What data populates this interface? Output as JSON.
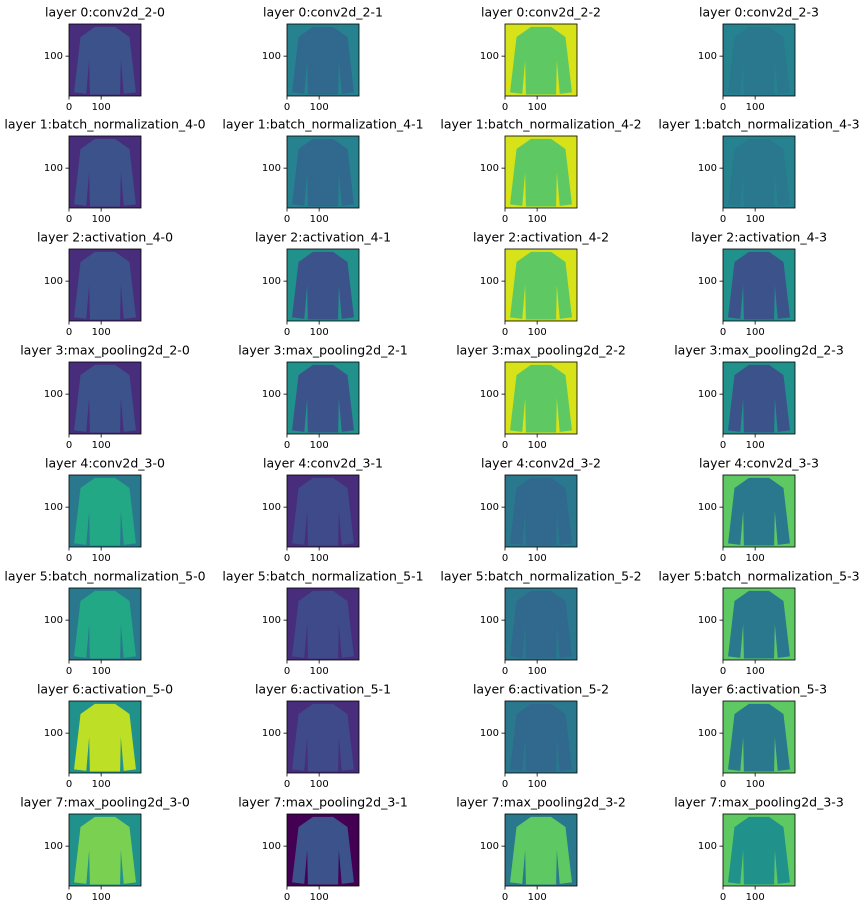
{
  "chart_data": [
    {
      "type": "image",
      "title": "layer 0:conv2d_2-0",
      "color": "#472d7b",
      "foreground": "#3b528b",
      "xlim": [
        0,
        224
      ],
      "ylim": [
        224,
        0
      ],
      "xticks": [
        0,
        100
      ],
      "yticks": [
        100
      ]
    },
    {
      "type": "image",
      "title": "layer 0:conv2d_2-1",
      "color": "#26828e",
      "foreground": "#31688e",
      "xlim": [
        0,
        224
      ],
      "ylim": [
        224,
        0
      ],
      "xticks": [
        0,
        100
      ],
      "yticks": [
        100
      ]
    },
    {
      "type": "image",
      "title": "layer 0:conv2d_2-2",
      "color": "#d8e219",
      "foreground": "#5ec962",
      "xlim": [
        0,
        224
      ],
      "ylim": [
        224,
        0
      ],
      "xticks": [
        0,
        100
      ],
      "yticks": [
        100
      ]
    },
    {
      "type": "image",
      "title": "layer 0:conv2d_2-3",
      "color": "#26828e",
      "foreground": "#2a788e",
      "xlim": [
        0,
        224
      ],
      "ylim": [
        224,
        0
      ],
      "xticks": [
        0,
        100
      ],
      "yticks": [
        100
      ]
    },
    {
      "type": "image",
      "title": "layer 1:batch_normalization_4-0",
      "color": "#472d7b",
      "foreground": "#3b528b",
      "xlim": [
        0,
        224
      ],
      "ylim": [
        224,
        0
      ],
      "xticks": [
        0,
        100
      ],
      "yticks": [
        100
      ]
    },
    {
      "type": "image",
      "title": "layer 1:batch_normalization_4-1",
      "color": "#26828e",
      "foreground": "#31688e",
      "xlim": [
        0,
        224
      ],
      "ylim": [
        224,
        0
      ],
      "xticks": [
        0,
        100
      ],
      "yticks": [
        100
      ]
    },
    {
      "type": "image",
      "title": "layer 1:batch_normalization_4-2",
      "color": "#d8e219",
      "foreground": "#5ec962",
      "xlim": [
        0,
        224
      ],
      "ylim": [
        224,
        0
      ],
      "xticks": [
        0,
        100
      ],
      "yticks": [
        100
      ]
    },
    {
      "type": "image",
      "title": "layer 1:batch_normalization_4-3",
      "color": "#26828e",
      "foreground": "#2a788e",
      "xlim": [
        0,
        224
      ],
      "ylim": [
        224,
        0
      ],
      "xticks": [
        0,
        100
      ],
      "yticks": [
        100
      ]
    },
    {
      "type": "image",
      "title": "layer 2:activation_4-0",
      "color": "#472d7b",
      "foreground": "#3b528b",
      "xlim": [
        0,
        224
      ],
      "ylim": [
        224,
        0
      ],
      "xticks": [
        0,
        100
      ],
      "yticks": [
        100
      ]
    },
    {
      "type": "image",
      "title": "layer 2:activation_4-1",
      "color": "#21918c",
      "foreground": "#3b528b",
      "xlim": [
        0,
        224
      ],
      "ylim": [
        224,
        0
      ],
      "xticks": [
        0,
        100
      ],
      "yticks": [
        100
      ]
    },
    {
      "type": "image",
      "title": "layer 2:activation_4-2",
      "color": "#d8e219",
      "foreground": "#5ec962",
      "xlim": [
        0,
        224
      ],
      "ylim": [
        224,
        0
      ],
      "xticks": [
        0,
        100
      ],
      "yticks": [
        100
      ]
    },
    {
      "type": "image",
      "title": "layer 2:activation_4-3",
      "color": "#21918c",
      "foreground": "#3b528b",
      "xlim": [
        0,
        224
      ],
      "ylim": [
        224,
        0
      ],
      "xticks": [
        0,
        100
      ],
      "yticks": [
        100
      ]
    },
    {
      "type": "image",
      "title": "layer 3:max_pooling2d_2-0",
      "color": "#472d7b",
      "foreground": "#3b528b",
      "xlim": [
        0,
        224
      ],
      "ylim": [
        224,
        0
      ],
      "xticks": [
        0,
        100
      ],
      "yticks": [
        100
      ]
    },
    {
      "type": "image",
      "title": "layer 3:max_pooling2d_2-1",
      "color": "#21918c",
      "foreground": "#3b528b",
      "xlim": [
        0,
        224
      ],
      "ylim": [
        224,
        0
      ],
      "xticks": [
        0,
        100
      ],
      "yticks": [
        100
      ]
    },
    {
      "type": "image",
      "title": "layer 3:max_pooling2d_2-2",
      "color": "#d8e219",
      "foreground": "#5ec962",
      "xlim": [
        0,
        224
      ],
      "ylim": [
        224,
        0
      ],
      "xticks": [
        0,
        100
      ],
      "yticks": [
        100
      ]
    },
    {
      "type": "image",
      "title": "layer 3:max_pooling2d_2-3",
      "color": "#21918c",
      "foreground": "#3b528b",
      "xlim": [
        0,
        224
      ],
      "ylim": [
        224,
        0
      ],
      "xticks": [
        0,
        100
      ],
      "yticks": [
        100
      ]
    },
    {
      "type": "image",
      "title": "layer 4:conv2d_3-0",
      "color": "#2a788e",
      "foreground": "#22a884",
      "xlim": [
        0,
        224
      ],
      "ylim": [
        224,
        0
      ],
      "xticks": [
        0,
        100
      ],
      "yticks": [
        100
      ]
    },
    {
      "type": "image",
      "title": "layer 4:conv2d_3-1",
      "color": "#472d7b",
      "foreground": "#3e4a89",
      "xlim": [
        0,
        224
      ],
      "ylim": [
        224,
        0
      ],
      "xticks": [
        0,
        100
      ],
      "yticks": [
        100
      ]
    },
    {
      "type": "image",
      "title": "layer 4:conv2d_3-2",
      "color": "#2a788e",
      "foreground": "#31688e",
      "xlim": [
        0,
        224
      ],
      "ylim": [
        224,
        0
      ],
      "xticks": [
        0,
        100
      ],
      "yticks": [
        100
      ]
    },
    {
      "type": "image",
      "title": "layer 4:conv2d_3-3",
      "color": "#5ec962",
      "foreground": "#2a788e",
      "xlim": [
        0,
        224
      ],
      "ylim": [
        224,
        0
      ],
      "xticks": [
        0,
        100
      ],
      "yticks": [
        100
      ]
    },
    {
      "type": "image",
      "title": "layer 5:batch_normalization_5-0",
      "color": "#2a788e",
      "foreground": "#22a884",
      "xlim": [
        0,
        224
      ],
      "ylim": [
        224,
        0
      ],
      "xticks": [
        0,
        100
      ],
      "yticks": [
        100
      ]
    },
    {
      "type": "image",
      "title": "layer 5:batch_normalization_5-1",
      "color": "#472d7b",
      "foreground": "#3e4a89",
      "xlim": [
        0,
        224
      ],
      "ylim": [
        224,
        0
      ],
      "xticks": [
        0,
        100
      ],
      "yticks": [
        100
      ]
    },
    {
      "type": "image",
      "title": "layer 5:batch_normalization_5-2",
      "color": "#2a788e",
      "foreground": "#31688e",
      "xlim": [
        0,
        224
      ],
      "ylim": [
        224,
        0
      ],
      "xticks": [
        0,
        100
      ],
      "yticks": [
        100
      ]
    },
    {
      "type": "image",
      "title": "layer 5:batch_normalization_5-3",
      "color": "#5ec962",
      "foreground": "#2a788e",
      "xlim": [
        0,
        224
      ],
      "ylim": [
        224,
        0
      ],
      "xticks": [
        0,
        100
      ],
      "yticks": [
        100
      ]
    },
    {
      "type": "image",
      "title": "layer 6:activation_5-0",
      "color": "#21918c",
      "foreground": "#bddf26",
      "xlim": [
        0,
        224
      ],
      "ylim": [
        224,
        0
      ],
      "xticks": [
        0,
        100
      ],
      "yticks": [
        100
      ]
    },
    {
      "type": "image",
      "title": "layer 6:activation_5-1",
      "color": "#472d7b",
      "foreground": "#3e4a89",
      "xlim": [
        0,
        224
      ],
      "ylim": [
        224,
        0
      ],
      "xticks": [
        0,
        100
      ],
      "yticks": [
        100
      ]
    },
    {
      "type": "image",
      "title": "layer 6:activation_5-2",
      "color": "#2a788e",
      "foreground": "#31688e",
      "xlim": [
        0,
        224
      ],
      "ylim": [
        224,
        0
      ],
      "xticks": [
        0,
        100
      ],
      "yticks": [
        100
      ]
    },
    {
      "type": "image",
      "title": "layer 6:activation_5-3",
      "color": "#5ec962",
      "foreground": "#2a788e",
      "xlim": [
        0,
        224
      ],
      "ylim": [
        224,
        0
      ],
      "xticks": [
        0,
        100
      ],
      "yticks": [
        100
      ]
    },
    {
      "type": "image",
      "title": "layer 7:max_pooling2d_3-0",
      "color": "#21918c",
      "foreground": "#7ad151",
      "xlim": [
        0,
        224
      ],
      "ylim": [
        224,
        0
      ],
      "xticks": [
        0,
        100
      ],
      "yticks": [
        100
      ]
    },
    {
      "type": "image",
      "title": "layer 7:max_pooling2d_3-1",
      "color": "#440154",
      "foreground": "#3b528b",
      "xlim": [
        0,
        224
      ],
      "ylim": [
        224,
        0
      ],
      "xticks": [
        0,
        100
      ],
      "yticks": [
        100
      ]
    },
    {
      "type": "image",
      "title": "layer 7:max_pooling2d_3-2",
      "color": "#2a788e",
      "foreground": "#5ec962",
      "xlim": [
        0,
        224
      ],
      "ylim": [
        224,
        0
      ],
      "xticks": [
        0,
        100
      ],
      "yticks": [
        100
      ]
    },
    {
      "type": "image",
      "title": "layer 7:max_pooling2d_3-3",
      "color": "#5ec962",
      "foreground": "#21918c",
      "xlim": [
        0,
        224
      ],
      "ylim": [
        224,
        0
      ],
      "xticks": [
        0,
        100
      ],
      "yticks": [
        100
      ]
    }
  ]
}
